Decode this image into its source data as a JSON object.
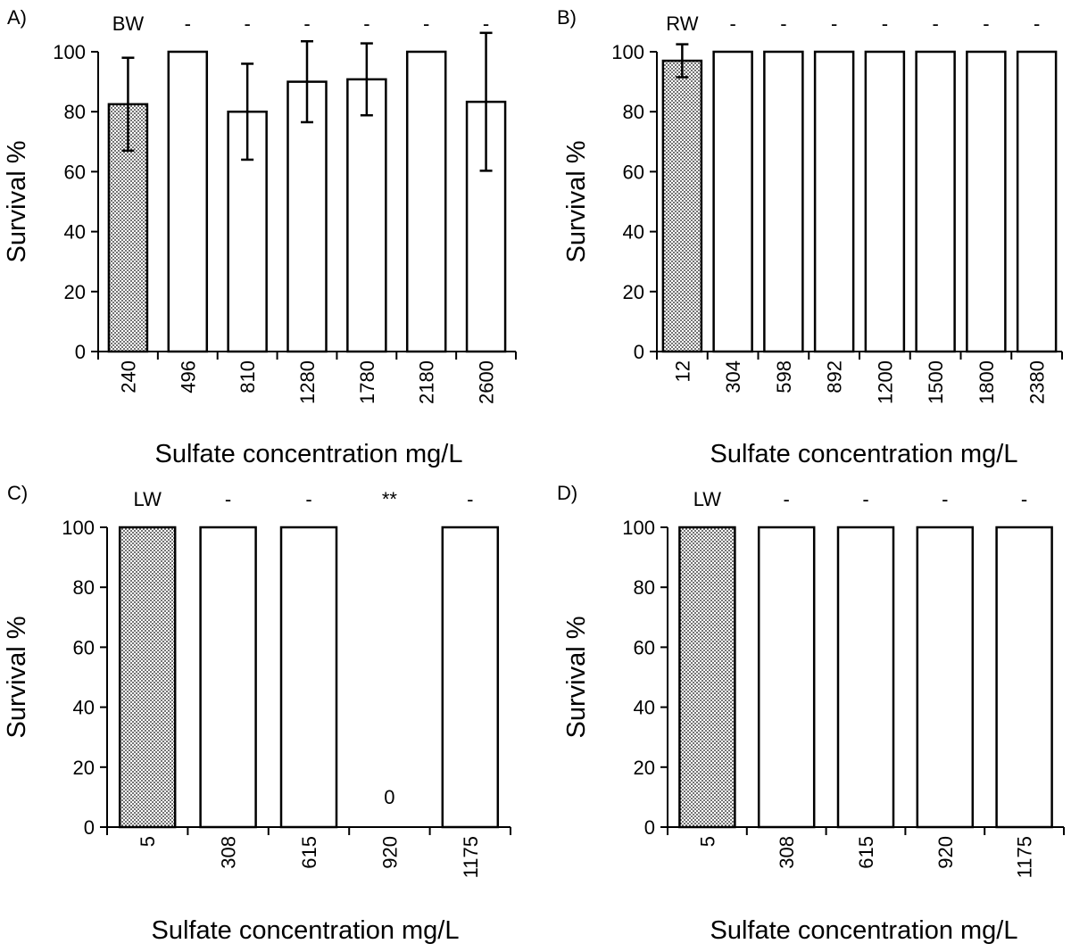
{
  "chart_data": [
    {
      "panel_label": "A)",
      "type": "bar",
      "categories": [
        "240",
        "496",
        "810",
        "1280",
        "1780",
        "2180",
        "2600"
      ],
      "values": [
        82.5,
        100,
        80,
        90,
        90.8,
        100,
        83.3
      ],
      "error": [
        15.5,
        0,
        16,
        13.5,
        12,
        0,
        23
      ],
      "control_index": 0,
      "control_label": "BW",
      "significance": [
        "",
        "-",
        "-",
        "-",
        "-",
        "-",
        "-"
      ],
      "value_labels": [
        "",
        "",
        "",
        "",
        "",
        "",
        ""
      ],
      "xlabel": "Sulfate concentration mg/L",
      "ylabel": "Survival %",
      "ylim": [
        0,
        100
      ],
      "yticks": [
        "0",
        "20",
        "40",
        "60",
        "80",
        "100"
      ],
      "xtick_rotation": "vertical"
    },
    {
      "panel_label": "B)",
      "type": "bar",
      "categories": [
        "12",
        "304",
        "598",
        "892",
        "1200",
        "1500",
        "1800",
        "2380"
      ],
      "values": [
        97,
        100,
        100,
        100,
        100,
        100,
        100,
        100
      ],
      "error": [
        5.5,
        0,
        0,
        0,
        0,
        0,
        0,
        0
      ],
      "control_index": 0,
      "control_label": "RW",
      "significance": [
        "",
        "-",
        "-",
        "-",
        "-",
        "-",
        "-",
        "-"
      ],
      "value_labels": [
        "",
        "",
        "",
        "",
        "",
        "",
        "",
        ""
      ],
      "xlabel": "Sulfate concentration mg/L",
      "ylabel": "Survival %",
      "ylim": [
        0,
        100
      ],
      "yticks": [
        "0",
        "20",
        "40",
        "60",
        "80",
        "100"
      ],
      "xtick_rotation": "vertical"
    },
    {
      "panel_label": "C)",
      "type": "bar",
      "categories": [
        "5",
        "308",
        "615",
        "920",
        "1175"
      ],
      "values": [
        100,
        100,
        100,
        0,
        100
      ],
      "error": [
        0,
        0,
        0,
        0,
        0
      ],
      "control_index": 0,
      "control_label": "LW",
      "significance": [
        "",
        "-",
        "-",
        "**",
        "-"
      ],
      "value_labels": [
        "",
        "",
        "",
        "0",
        ""
      ],
      "xlabel": "Sulfate concentration mg/L",
      "ylabel": "Survival %",
      "ylim": [
        0,
        100
      ],
      "yticks": [
        "0",
        "20",
        "40",
        "60",
        "80",
        "100"
      ],
      "xtick_rotation": "vertical"
    },
    {
      "panel_label": "D)",
      "type": "bar",
      "categories": [
        "5",
        "308",
        "615",
        "920",
        "1175"
      ],
      "values": [
        100,
        100,
        100,
        100,
        100
      ],
      "error": [
        0,
        0,
        0,
        0,
        0
      ],
      "control_index": 0,
      "control_label": "LW",
      "significance": [
        "",
        "-",
        "-",
        "-",
        "-"
      ],
      "value_labels": [
        "",
        "",
        "",
        "",
        ""
      ],
      "xlabel": "Sulfate concentration mg/L",
      "ylabel": "Survival %",
      "ylim": [
        0,
        100
      ],
      "yticks": [
        "0",
        "20",
        "40",
        "60",
        "80",
        "100"
      ],
      "xtick_rotation": "vertical"
    }
  ]
}
